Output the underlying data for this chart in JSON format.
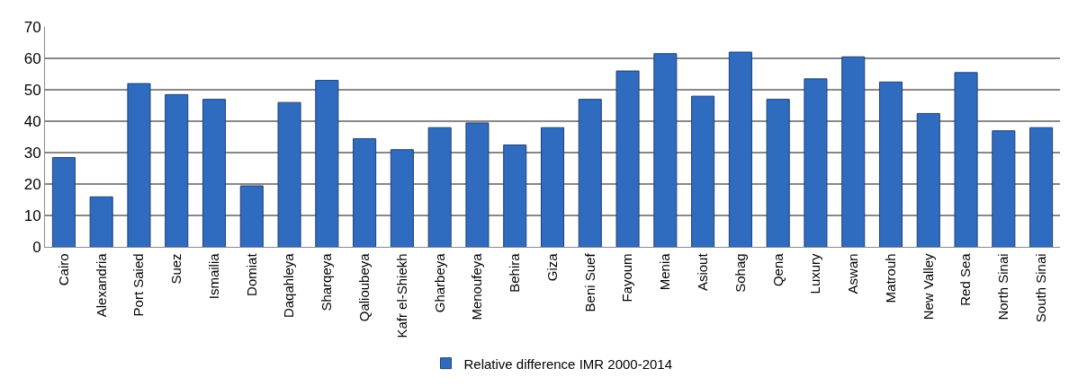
{
  "chart_data": {
    "type": "bar",
    "categories": [
      "Cairo",
      "Alexandria",
      "Port Saied",
      "Suez",
      "Ismailia",
      "Domiat",
      "Daqahleya",
      "Sharqeya",
      "Qalioubeya",
      "Kafr el-Shiekh",
      "Gharbeya",
      "Menoufeya",
      "Behira",
      "Giza",
      "Beni Suef",
      "Fayoum",
      "Menia",
      "Asiout",
      "Sohag",
      "Qena",
      "Luxury",
      "Aswan",
      "Matrouh",
      "New Valley",
      "Red Sea",
      "North Sinai",
      "South Sinai"
    ],
    "series": [
      {
        "name": "Relative difference IMR 2000-2014",
        "color": "#2f6cbf",
        "values": [
          28.5,
          16,
          52,
          48.5,
          47,
          19.5,
          46,
          53,
          34.5,
          31,
          38,
          39.5,
          32.5,
          38,
          47,
          56,
          61.5,
          48,
          62,
          47,
          53.5,
          60.5,
          52.5,
          42.5,
          55.5,
          37,
          38
        ]
      }
    ],
    "ylim": [
      0,
      70
    ],
    "yticks": [
      0,
      10,
      20,
      30,
      40,
      50,
      60,
      70
    ],
    "grid": "y",
    "legend": "bottom"
  }
}
